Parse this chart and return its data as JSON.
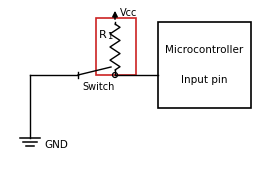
{
  "vcc_label": "Vcc",
  "r_label": "R",
  "r_subscript": "1",
  "switch_label": "Switch",
  "gnd_label": "GND",
  "mc_label": "Microcontroller",
  "input_label": "Input pin",
  "bg_color": "#ffffff",
  "wire_color": "#000000",
  "resistor_box_color": "#cc2222",
  "mc_box_color": "#000000",
  "text_color": "#000000",
  "arrow_color": "#000000",
  "fig_width": 2.58,
  "fig_height": 1.71,
  "dpi": 100
}
